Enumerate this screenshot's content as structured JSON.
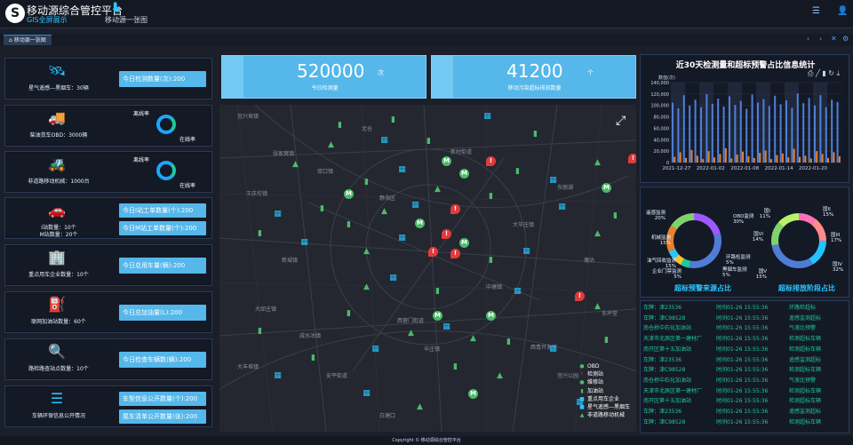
{
  "header": {
    "logo_letter": "S",
    "title": "移动源综合管控平台",
    "subtitle": "GIS全屏展示",
    "tab_label": "移动源一张图",
    "menu_icon": "menu-icon",
    "user_icon": "user-icon"
  },
  "tabbar": {
    "active_tab": "移动源一张图",
    "controls": [
      "‹",
      "›",
      "✕",
      "⚙"
    ]
  },
  "left_cards": [
    {
      "icon": "satellite-icon",
      "label": "星气遥感—黑烟车：30辆",
      "label2": "",
      "buttons": [
        "今日检测数量(次):200"
      ],
      "ring": null
    },
    {
      "icon": "truck-icon",
      "label": "柴油货车OBD：3000辆",
      "label2": "",
      "buttons": [],
      "ring": {
        "top": "离线率",
        "bottom": "在线率"
      }
    },
    {
      "icon": "excavator-icon",
      "label": "非道路移动机械：1000台",
      "label2": "",
      "buttons": [],
      "ring": {
        "top": "离线率",
        "bottom": "在线率"
      }
    },
    {
      "icon": "car-icon",
      "label": "I站数量：10个",
      "label2": "M站数量：20个",
      "buttons": [
        "今日I站工单数量(个):200",
        "今日M站工单数量(个):200"
      ],
      "ring": null
    },
    {
      "icon": "building-icon",
      "label": "重点用车企业数量：10个",
      "label2": "",
      "buttons": [
        "今日总用车量(辆):200"
      ],
      "ring": null
    },
    {
      "icon": "gas-station-icon",
      "label": "联网加油站数量：60个",
      "label2": "",
      "buttons": [
        "今日总加油量(L):200"
      ],
      "ring": null
    },
    {
      "icon": "inspection-icon",
      "label": "路检路查站点数量：10个",
      "label2": "",
      "buttons": [
        "今日检查车辆数(辆):200"
      ],
      "ring": null
    },
    {
      "icon": "list-icon",
      "label": "车辆环保信息公开情况",
      "label2": "",
      "buttons": [
        "车型信息公开数量(个):200",
        "尾车清单公开数量(张):200"
      ],
      "ring": null
    }
  ],
  "kpis": [
    {
      "value": "520000",
      "unit": "次",
      "caption": "今日检测量"
    },
    {
      "value": "41200",
      "unit": "个",
      "caption": "移动污染超标排放数量"
    }
  ],
  "map": {
    "expand_icon": "expand-icon",
    "legend": [
      {
        "symbol": "●",
        "color": "#4cbb6a",
        "label": "OBD"
      },
      {
        "symbol": "!",
        "color": "#e23b3b",
        "label": "检测站"
      },
      {
        "symbol": "●",
        "color": "#4cbb6a",
        "label": "维修站"
      },
      {
        "symbol": "▮",
        "color": "#4cbb6a",
        "label": "加油站"
      },
      {
        "symbol": "■",
        "color": "#24c3ff",
        "label": "重点用车企业"
      },
      {
        "symbol": "■",
        "color": "#24c3ff",
        "label": "星气遥感—黑烟车"
      },
      {
        "symbol": "▲",
        "color": "#4cbb6a",
        "label": "非道路移动机械"
      }
    ],
    "places": [
      "宜兴埠镇",
      "北仓",
      "张家窝镇",
      "双口镇",
      "新村街道",
      "王庆坨镇",
      "静海区",
      "东丽湖",
      "大毕庄镇",
      "塘沽",
      "新城镇",
      "中塘镇",
      "大邱庄镇",
      "西营门街道",
      "安平街道",
      "辛庄镇",
      "白塘口",
      "西青开发区",
      "宫兴公园",
      "大丰堆镇",
      "咸水沽镇",
      "东坪堂"
    ]
  },
  "bar_chart": {
    "title": "近30天检测量和超标预警占比信息统计",
    "ylabel": "数值(次)",
    "toolbar_icons": [
      "data-view-icon",
      "line-icon",
      "bar-icon",
      "refresh-icon",
      "download-icon"
    ]
  },
  "chart_data": {
    "type": "bar",
    "title": "近30天检测量和超标预警占比信息统计",
    "ylabel": "数值(次)",
    "ylim": [
      0,
      140000
    ],
    "yticks": [
      "140,000",
      "120,000",
      "100,000",
      "80,000",
      "60,000",
      "40,000",
      "20,000",
      "0"
    ],
    "xtick_labels": [
      "2021-12-27",
      "2022-01-02",
      "2022-01-08",
      "2022-01-14",
      "2022-01-20"
    ],
    "series": [
      {
        "color": "#4e7dd6",
        "values": [
          105000,
          95000,
          118000,
          100000,
          110000,
          97000,
          120000,
          103000,
          112000,
          98000,
          116000,
          101000,
          108000,
          94000,
          119000,
          105000,
          111000,
          99000,
          117000,
          102000,
          109000,
          96000,
          121000,
          104000,
          113000,
          100000,
          118000,
          97000,
          110000,
          106000
        ]
      },
      {
        "color": "#e8812b",
        "values": [
          10000,
          18000,
          8000,
          22000,
          12000,
          6000,
          20000,
          9000,
          15000,
          25000,
          7000,
          14000,
          19000,
          11000,
          8000,
          17000,
          21000,
          6000,
          13000,
          16000,
          9000,
          24000,
          10000,
          12000,
          7000,
          20000,
          15000,
          8000,
          18000,
          11000
        ]
      }
    ]
  },
  "donuts": [
    {
      "title": "超标预警来源占比",
      "slices": [
        {
          "label": "遥感监测",
          "pct": "20%",
          "value": 20,
          "color": "#9b59ff"
        },
        {
          "label": "OBD监测",
          "pct": "30%",
          "value": 30,
          "color": "#4e7dd6"
        },
        {
          "label": "环路检监测",
          "pct": "5%",
          "value": 5,
          "color": "#1ec99a"
        },
        {
          "label": "黑烟车监测",
          "pct": "5%",
          "value": 5,
          "color": "#f1c232"
        },
        {
          "label": "企业门禁监测",
          "pct": "5%",
          "value": 5,
          "color": "#2ec6ff"
        },
        {
          "label": "油气回收监测",
          "pct": "15%",
          "value": 15,
          "color": "#e8812b"
        },
        {
          "label": "机械监测",
          "pct": "15%",
          "value": 15,
          "color": "#7fd36b"
        }
      ]
    },
    {
      "title": "超标排放阶段占比",
      "slices": [
        {
          "label": "国I",
          "pct": "11%",
          "value": 11,
          "color": "#ff6fb5"
        },
        {
          "label": "国II",
          "pct": "15%",
          "value": 15,
          "color": "#ff8a8a"
        },
        {
          "label": "国III",
          "pct": "17%",
          "value": 17,
          "color": "#24c3ff"
        },
        {
          "label": "国IV",
          "pct": "32%",
          "value": 32,
          "color": "#4e7dd6"
        },
        {
          "label": "国V",
          "pct": "15%",
          "value": 15,
          "color": "#7fd36b"
        },
        {
          "label": "国VI",
          "pct": "14%",
          "value": 14,
          "color": "#b8f06b"
        }
      ]
    }
  ],
  "alerts": [
    {
      "plate": "车牌：津23536",
      "time": "时间01-26 15:55:36",
      "type": "环路检超标"
    },
    {
      "plate": "车牌：津C98528",
      "time": "时间01-26 15:55:36",
      "type": "遥感监测超标"
    },
    {
      "plate": "南仓桥中石化加油站",
      "time": "时间01-26 15:55:36",
      "type": "气液比预警"
    },
    {
      "plate": "天津市北辰区第一建材厂",
      "time": "时间01-26 15:55:36",
      "type": "检测超标车辆"
    },
    {
      "plate": "南开区第十五加油站",
      "time": "时间01-26 15:55:36",
      "type": "检测超标车辆"
    },
    {
      "plate": "车牌：津23536",
      "time": "时间01-26 15:55:36",
      "type": "遥感监测超标"
    },
    {
      "plate": "车牌：津C98528",
      "time": "时间01-26 15:55:36",
      "type": "检测超标车辆"
    },
    {
      "plate": "南仓桥中石化加油站",
      "time": "时间01-26 15:55:36",
      "type": "气液比预警"
    },
    {
      "plate": "天津市北辰区第一建材厂",
      "time": "时间01-26 15:55:36",
      "type": "检测超标车辆"
    },
    {
      "plate": "南开区第十五加油站",
      "time": "时间01-26 15:55:36",
      "type": "检测超标车辆"
    },
    {
      "plate": "车牌：津23536",
      "time": "时间01-26 15:55:36",
      "type": "遥感监测超标"
    },
    {
      "plate": "车牌：津C98528",
      "time": "时间01-26 15:55:36",
      "type": "检测超标车辆"
    }
  ],
  "footer": "Copyright © 移动源综合管控平台"
}
